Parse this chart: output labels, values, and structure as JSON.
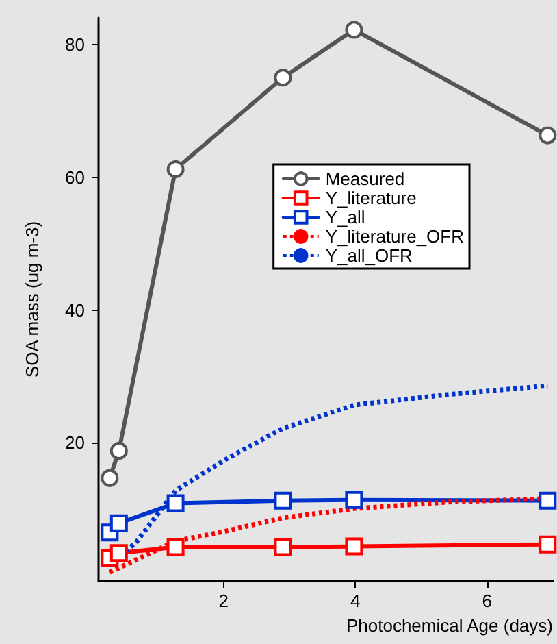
{
  "chart_data": {
    "type": "line",
    "xlabel": "Photochemical Age (days)",
    "ylabel": "SOA mass (ug m-3)",
    "xlim": [
      0.1,
      7.0
    ],
    "ylim": [
      -0.8,
      84
    ],
    "xticks": [
      2,
      4,
      6
    ],
    "yticks": [
      20,
      40,
      60,
      80
    ],
    "grid": false,
    "legend": "top right",
    "series": [
      {
        "name": "Measured",
        "color": "#555555",
        "marker": "circle",
        "line_style": "solid",
        "x": [
          0.27,
          0.41,
          1.27,
          2.9,
          3.98,
          6.92
        ],
        "values": [
          14.7,
          18.8,
          61.2,
          75,
          82.2,
          66.3
        ]
      },
      {
        "name": "Y_literature",
        "color": "#ff0000",
        "marker": "square",
        "line_style": "solid",
        "x": [
          0.27,
          0.41,
          1.27,
          2.9,
          3.98,
          6.92
        ],
        "values": [
          2.7,
          3.4,
          4.3,
          4.3,
          4.4,
          4.7
        ]
      },
      {
        "name": "Y_all",
        "color": "#0033cc",
        "marker": "square",
        "line_style": "solid",
        "x": [
          0.27,
          0.41,
          1.27,
          2.9,
          3.98,
          6.92
        ],
        "values": [
          6.5,
          7.9,
          10.9,
          11.3,
          11.4,
          11.3
        ]
      },
      {
        "name": "Y_literature_OFR",
        "color": "#ff0000",
        "marker": "none",
        "line_style": "dotted",
        "x": [
          0.27,
          1.27,
          2.03,
          2.9,
          3.98,
          5.43,
          6.92
        ],
        "values": [
          0.5,
          5.2,
          6.7,
          8.7,
          10.1,
          11.1,
          11.6
        ]
      },
      {
        "name": "Y_all_OFR",
        "color": "#0033cc",
        "marker": "none",
        "line_style": "dotted",
        "x": [
          0.27,
          0.67,
          1.27,
          2.03,
          2.9,
          3.98,
          5.43,
          6.92
        ],
        "values": [
          1.7,
          5.0,
          12.8,
          17.5,
          22.2,
          25.7,
          27.3,
          28.6
        ]
      }
    ]
  }
}
